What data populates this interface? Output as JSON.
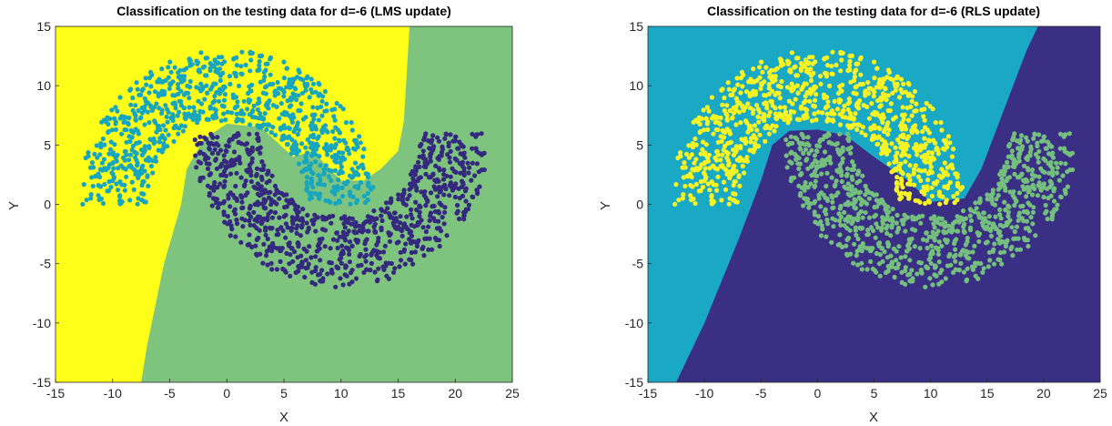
{
  "colors": {
    "left_region_a": "#FFFF19",
    "left_region_b": "#7FC47E",
    "left_class_top": "#18A6BF",
    "left_class_bottom": "#35287F",
    "right_region_a": "#1AA9C4",
    "right_region_b": "#3A2F85",
    "right_class_top": "#F7F325",
    "right_class_bottom": "#74BE7E"
  },
  "chart_data": [
    {
      "type": "scatter",
      "title": "Classification on the testing data for d=-6 (LMS update)",
      "xlabel": "X",
      "ylabel": "Y",
      "xlim": [
        -15,
        25
      ],
      "ylim": [
        -15,
        15
      ],
      "xticks": [
        "-15",
        "-10",
        "-5",
        "0",
        "5",
        "10",
        "15",
        "20",
        "25"
      ],
      "yticks": [
        "15",
        "10",
        "5",
        "0",
        "-5",
        "-10",
        "-15"
      ],
      "grid": false,
      "legend": "none",
      "regions": [
        {
          "class": "yellow region",
          "color": "#FFFF19"
        },
        {
          "class": "green region",
          "color": "#7FC47E"
        }
      ],
      "decision_boundary": [
        [
          -7.5,
          -15
        ],
        [
          -7,
          -12
        ],
        [
          -5.5,
          -5
        ],
        [
          -4,
          0
        ],
        [
          -3.5,
          3
        ],
        [
          -2,
          5.5
        ],
        [
          0,
          6.8
        ],
        [
          3,
          6.5
        ],
        [
          5.8,
          4
        ],
        [
          7.5,
          4.5
        ],
        [
          10,
          2
        ],
        [
          12,
          2
        ],
        [
          13.5,
          3
        ],
        [
          15,
          4.5
        ],
        [
          15.5,
          7
        ],
        [
          16,
          15
        ]
      ],
      "series": [
        {
          "class": "upper moon",
          "color": "#18A6BF",
          "center": [
            0,
            0
          ],
          "r_inner": 7,
          "r_outer": 13,
          "angle_deg": [
            0,
            180
          ]
        },
        {
          "class": "lower moon",
          "color": "#35287F",
          "center": [
            10,
            6
          ],
          "r_inner": 7,
          "r_outer": 13,
          "angle_deg": [
            180,
            360
          ]
        }
      ]
    },
    {
      "type": "scatter",
      "title": "Classification on the testing data for d=-6 (RLS update)",
      "xlabel": "X",
      "ylabel": "Y",
      "xlim": [
        -15,
        25
      ],
      "ylim": [
        -15,
        15
      ],
      "xticks": [
        "-15",
        "-10",
        "-5",
        "0",
        "5",
        "10",
        "15",
        "20",
        "25"
      ],
      "yticks": [
        "15",
        "10",
        "5",
        "0",
        "-5",
        "-10",
        "-15"
      ],
      "grid": false,
      "legend": "none",
      "regions": [
        {
          "class": "cyan region",
          "color": "#1AA9C4"
        },
        {
          "class": "purple region",
          "color": "#3A2F85"
        }
      ],
      "decision_boundary": [
        [
          -12.5,
          -15
        ],
        [
          -10,
          -10
        ],
        [
          -7,
          -3
        ],
        [
          -5,
          2
        ],
        [
          -4,
          5
        ],
        [
          -2.5,
          6.2
        ],
        [
          0,
          6.3
        ],
        [
          2.5,
          5.8
        ],
        [
          5,
          4
        ],
        [
          8,
          2
        ],
        [
          10,
          0.2
        ],
        [
          13,
          0.5
        ],
        [
          14.5,
          3
        ],
        [
          16.5,
          8
        ],
        [
          18.5,
          13
        ],
        [
          19.5,
          15
        ]
      ],
      "series": [
        {
          "class": "upper moon",
          "color": "#F7F325",
          "center": [
            0,
            0
          ],
          "r_inner": 7,
          "r_outer": 13,
          "angle_deg": [
            0,
            180
          ]
        },
        {
          "class": "lower moon",
          "color": "#74BE7E",
          "center": [
            10,
            6
          ],
          "r_inner": 7,
          "r_outer": 13,
          "angle_deg": [
            180,
            360
          ]
        }
      ]
    }
  ]
}
